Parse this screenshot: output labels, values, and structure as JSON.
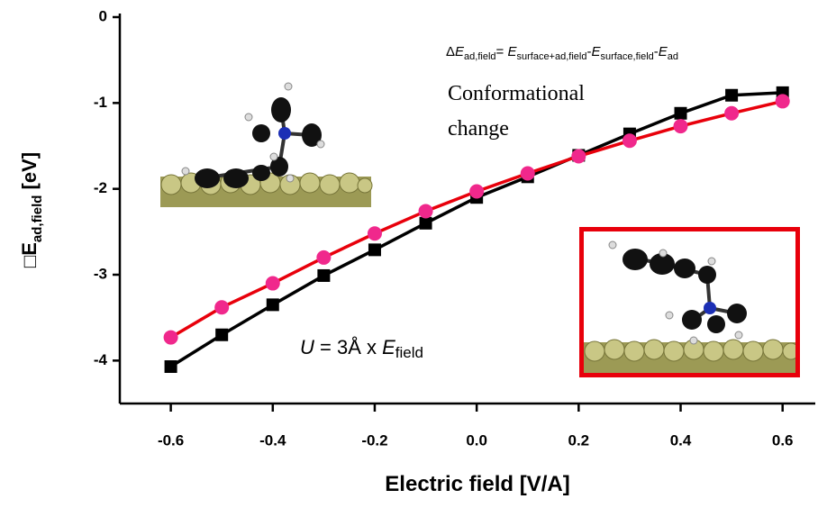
{
  "chart_data": {
    "type": "line",
    "y_label": "□E",
    "y_label_sub": "ad,field",
    "y_label_unit": " [eV]",
    "x_label": "Electric field [V/A]",
    "x": [
      -0.6,
      -0.5,
      -0.4,
      -0.3,
      -0.2,
      -0.1,
      0.0,
      0.1,
      0.2,
      0.3,
      0.4,
      0.5,
      0.6
    ],
    "series": [
      {
        "color": "#000000",
        "marker": "square",
        "values": [
          -4.07,
          -3.7,
          -3.35,
          -3.01,
          -2.71,
          -2.4,
          -2.1,
          -1.86,
          -1.61,
          -1.36,
          -1.12,
          -0.91,
          -0.88
        ]
      },
      {
        "color": "#e8000b",
        "marker_color": "#f0288c",
        "marker": "circle",
        "values": [
          -3.73,
          -3.38,
          -3.1,
          -2.8,
          -2.52,
          -2.26,
          -2.03,
          -1.82,
          -1.62,
          -1.44,
          -1.27,
          -1.12,
          -0.98
        ]
      }
    ],
    "xlim": [
      -0.7,
      0.65
    ],
    "ylim": [
      -4.5,
      0
    ],
    "xticks": [
      -0.6,
      -0.4,
      -0.2,
      {
        "value": 0,
        "label": "0.0"
      },
      0.2,
      0.4,
      0.6
    ],
    "yticks": [
      0,
      -1,
      -2,
      -3,
      -4
    ],
    "formula": [
      {
        "text": "Δ",
        "style": "normal"
      },
      {
        "text": "E",
        "style": "italic"
      },
      {
        "text": "ad,field",
        "style": "sub"
      },
      {
        "text": "= ",
        "style": "normal"
      },
      {
        "text": "E",
        "style": "italic"
      },
      {
        "text": "surface+ad,field",
        "style": "sub"
      },
      {
        "text": "-",
        "style": "normal"
      },
      {
        "text": "E",
        "style": "italic"
      },
      {
        "text": "surface,field",
        "style": "sub"
      },
      {
        "text": "-",
        "style": "normal"
      },
      {
        "text": "E",
        "style": "italic"
      },
      {
        "text": "ad",
        "style": "sub"
      }
    ],
    "annotation_lines": [
      "Conformational",
      "change"
    ],
    "potential": [
      {
        "text": "U",
        "style": "italic"
      },
      {
        "text": " = 3Å x ",
        "style": "normal"
      },
      {
        "text": "E",
        "style": "italic"
      },
      {
        "text": "field",
        "style": "sub"
      }
    ]
  }
}
